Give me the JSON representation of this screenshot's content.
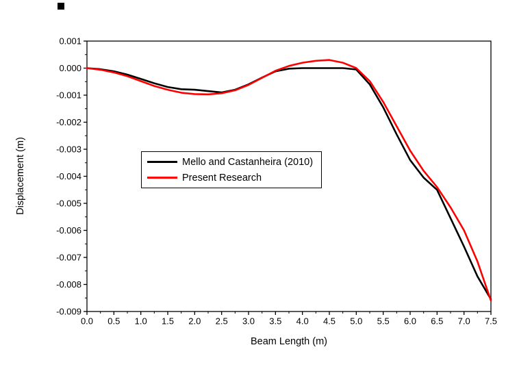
{
  "chart_data": {
    "type": "line",
    "title": "",
    "xlabel": "Beam Length (m)",
    "ylabel": "Displacement (m)",
    "xlim": [
      0,
      7.5
    ],
    "ylim": [
      -0.009,
      0.001
    ],
    "x_major_tick": 0.5,
    "x_minor_tick": 0.25,
    "y_major_tick": 0.001,
    "y_minor_tick": 0.0005,
    "x_tick_decimals": 1,
    "y_tick_decimals": 3,
    "grid": false,
    "frame": "box",
    "legend_position": "inside-center-left",
    "x": [
      0.0,
      0.25,
      0.5,
      0.75,
      1.0,
      1.25,
      1.5,
      1.75,
      2.0,
      2.25,
      2.5,
      2.75,
      3.0,
      3.25,
      3.5,
      3.75,
      4.0,
      4.25,
      4.5,
      4.75,
      5.0,
      5.25,
      5.5,
      5.75,
      6.0,
      6.25,
      6.5,
      6.75,
      7.0,
      7.25,
      7.5
    ],
    "series": [
      {
        "name": "Mello and Castanheira (2010)",
        "color": "#000000",
        "values": [
          0.0,
          -4e-05,
          -0.00012,
          -0.00024,
          -0.0004,
          -0.00056,
          -0.0007,
          -0.00078,
          -0.0008,
          -0.00085,
          -0.0009,
          -0.0008,
          -0.0006,
          -0.00035,
          -0.00012,
          -2e-05,
          0.0,
          0.0,
          0.0,
          0.0,
          -5e-05,
          -0.0006,
          -0.00145,
          -0.00245,
          -0.0034,
          -0.00405,
          -0.0045,
          -0.00555,
          -0.0066,
          -0.0077,
          -0.00855
        ]
      },
      {
        "name": "Present Research",
        "color": "#ff0000",
        "values": [
          0.0,
          -6e-05,
          -0.00016,
          -0.0003,
          -0.00048,
          -0.00066,
          -0.0008,
          -0.00091,
          -0.00096,
          -0.00097,
          -0.00093,
          -0.00082,
          -0.00062,
          -0.00036,
          -0.0001,
          8e-05,
          0.0002,
          0.00027,
          0.0003,
          0.0002,
          0.0,
          -0.00048,
          -0.00125,
          -0.00215,
          -0.00305,
          -0.0038,
          -0.0044,
          -0.00515,
          -0.006,
          -0.00715,
          -0.0086
        ]
      }
    ]
  }
}
